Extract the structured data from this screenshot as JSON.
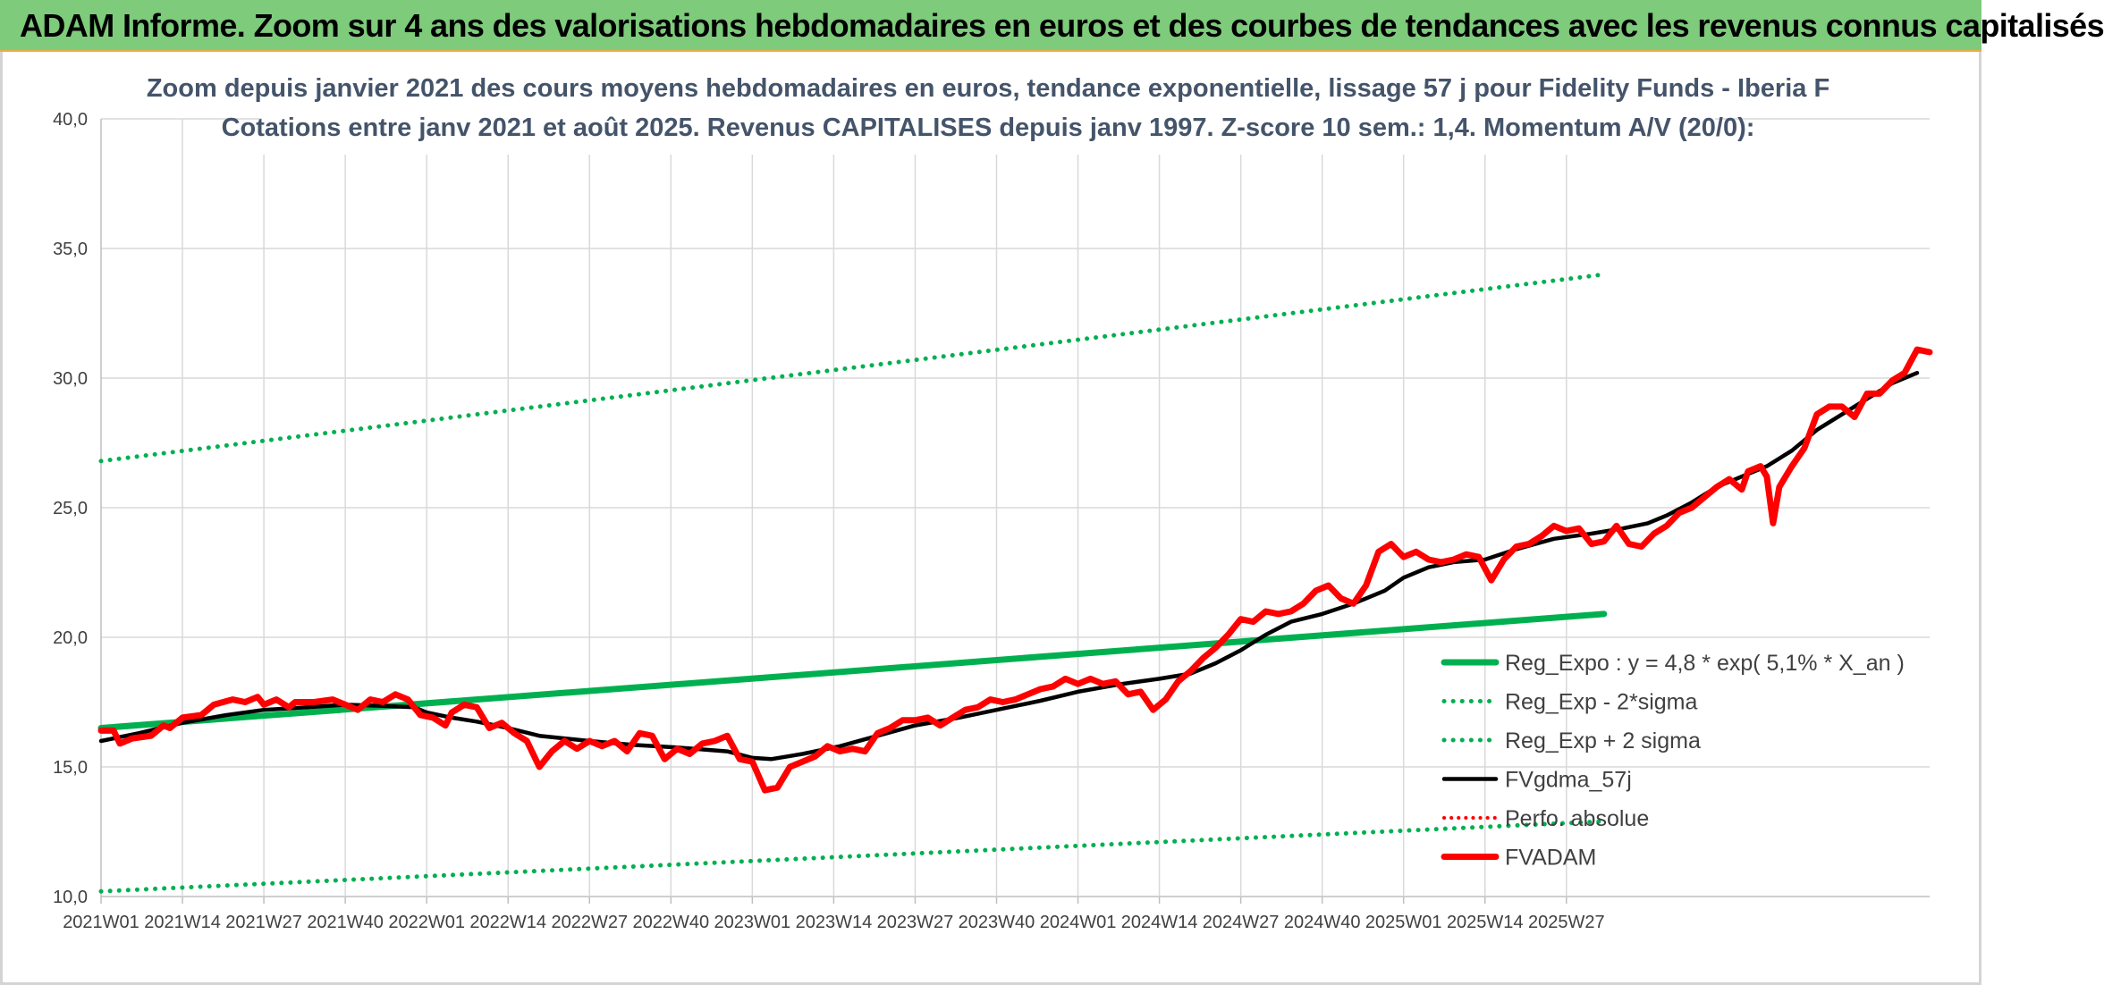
{
  "banner": {
    "title": "ADAM Informe. Zoom sur 4 ans des valorisations hebdomadaires en euros et des courbes de tendances avec les revenus connus capitalisés"
  },
  "chart_data": {
    "type": "line",
    "title": "Zoom depuis janvier 2021 des cours moyens hebdomadaires en euros, tendance exponentielle, lissage 57 j pour Fidelity Funds - Iberia F",
    "subtitle": "Cotations entre janv 2021 et août 2025. Revenus CAPITALISES depuis janv 1997. Z-score 10 sem.: 1,4. Momentum A/V (20/0):",
    "xlabel": "",
    "ylabel": "",
    "ylim": [
      10,
      40
    ],
    "yticks": [
      "10,0",
      "15,0",
      "20,0",
      "25,0",
      "30,0",
      "35,0",
      "40,0"
    ],
    "xticks": [
      "2021W01",
      "2021W14",
      "2021W27",
      "2021W40",
      "2022W01",
      "2022W14",
      "2022W27",
      "2022W40",
      "2023W01",
      "2023W14",
      "2023W27",
      "2023W40",
      "2024W01",
      "2024W14",
      "2024W27",
      "2024W40",
      "2025W01",
      "2025W14",
      "2025W27"
    ],
    "grid": true,
    "legend_position": "bottom-right",
    "colors": {
      "reg_expo": "#00b050",
      "reg_band": "#00b050",
      "fvgdma": "#000000",
      "perfo": "#ff0000",
      "fvadam": "#ff0000",
      "grid": "#d9d9d9",
      "axis": "#bfbfbf"
    },
    "series": [
      {
        "name": "Reg_Expo : y = 4,8 * exp( 5,1% *  X_an )",
        "style": "solid-thick",
        "points": [
          [
            0,
            16.5
          ],
          [
            240,
            20.9
          ]
        ]
      },
      {
        "name": "Reg_Exp - 2*sigma",
        "style": "dotted",
        "points": [
          [
            0,
            10.2
          ],
          [
            240,
            12.9
          ]
        ]
      },
      {
        "name": "Reg_Exp + 2 sigma",
        "style": "dotted",
        "points": [
          [
            0,
            26.8
          ],
          [
            240,
            34.0
          ]
        ]
      },
      {
        "name": "FVgdma_57j",
        "style": "solid",
        "points": [
          [
            0,
            16.0
          ],
          [
            6,
            16.3
          ],
          [
            13,
            16.7
          ],
          [
            20,
            17.0
          ],
          [
            26,
            17.2
          ],
          [
            33,
            17.3
          ],
          [
            39,
            17.4
          ],
          [
            45,
            17.35
          ],
          [
            50,
            17.3
          ],
          [
            52,
            17.1
          ],
          [
            56,
            16.9
          ],
          [
            60,
            16.75
          ],
          [
            65,
            16.5
          ],
          [
            70,
            16.2
          ],
          [
            78,
            16.0
          ],
          [
            85,
            15.85
          ],
          [
            92,
            15.75
          ],
          [
            100,
            15.6
          ],
          [
            104,
            15.35
          ],
          [
            107,
            15.3
          ],
          [
            112,
            15.5
          ],
          [
            118,
            15.8
          ],
          [
            124,
            16.2
          ],
          [
            130,
            16.6
          ],
          [
            137,
            16.9
          ],
          [
            143,
            17.2
          ],
          [
            150,
            17.55
          ],
          [
            156,
            17.9
          ],
          [
            163,
            18.2
          ],
          [
            169,
            18.4
          ],
          [
            174,
            18.6
          ],
          [
            178,
            19.0
          ],
          [
            182,
            19.5
          ],
          [
            186,
            20.1
          ],
          [
            190,
            20.6
          ],
          [
            195,
            20.9
          ],
          [
            200,
            21.3
          ],
          [
            205,
            21.8
          ],
          [
            208,
            22.3
          ],
          [
            212,
            22.7
          ],
          [
            216,
            22.9
          ],
          [
            221,
            23.0
          ],
          [
            226,
            23.4
          ],
          [
            232,
            23.8
          ],
          [
            238,
            24.0
          ],
          [
            243,
            24.2
          ],
          [
            247,
            24.4
          ],
          [
            250,
            24.7
          ],
          [
            254,
            25.2
          ],
          [
            258,
            25.8
          ],
          [
            262,
            26.2
          ],
          [
            266,
            26.6
          ],
          [
            270,
            27.2
          ],
          [
            274,
            28.0
          ],
          [
            278,
            28.6
          ],
          [
            282,
            29.2
          ],
          [
            286,
            29.8
          ],
          [
            290,
            30.2
          ]
        ]
      },
      {
        "name": "Perfo. absolue",
        "style": "dotted",
        "points": []
      },
      {
        "name": "FVADAM",
        "style": "solid-thick",
        "points": [
          [
            0,
            16.4
          ],
          [
            2,
            16.4
          ],
          [
            3,
            15.9
          ],
          [
            5,
            16.1
          ],
          [
            8,
            16.2
          ],
          [
            10,
            16.6
          ],
          [
            11,
            16.5
          ],
          [
            13,
            16.9
          ],
          [
            16,
            17.0
          ],
          [
            18,
            17.4
          ],
          [
            21,
            17.6
          ],
          [
            23,
            17.5
          ],
          [
            25,
            17.7
          ],
          [
            26,
            17.4
          ],
          [
            28,
            17.6
          ],
          [
            30,
            17.3
          ],
          [
            31,
            17.5
          ],
          [
            34,
            17.5
          ],
          [
            37,
            17.6
          ],
          [
            39,
            17.4
          ],
          [
            41,
            17.2
          ],
          [
            43,
            17.6
          ],
          [
            45,
            17.5
          ],
          [
            47,
            17.8
          ],
          [
            49,
            17.6
          ],
          [
            51,
            17.0
          ],
          [
            53,
            16.9
          ],
          [
            55,
            16.6
          ],
          [
            56,
            17.1
          ],
          [
            58,
            17.4
          ],
          [
            60,
            17.3
          ],
          [
            62,
            16.5
          ],
          [
            64,
            16.7
          ],
          [
            66,
            16.3
          ],
          [
            68,
            16.0
          ],
          [
            70,
            15.0
          ],
          [
            72,
            15.6
          ],
          [
            74,
            16.0
          ],
          [
            76,
            15.7
          ],
          [
            78,
            16.0
          ],
          [
            80,
            15.8
          ],
          [
            82,
            16.0
          ],
          [
            84,
            15.6
          ],
          [
            86,
            16.3
          ],
          [
            88,
            16.2
          ],
          [
            90,
            15.3
          ],
          [
            92,
            15.7
          ],
          [
            94,
            15.5
          ],
          [
            96,
            15.9
          ],
          [
            98,
            16.0
          ],
          [
            100,
            16.2
          ],
          [
            102,
            15.3
          ],
          [
            104,
            15.2
          ],
          [
            106,
            14.1
          ],
          [
            108,
            14.2
          ],
          [
            110,
            15.0
          ],
          [
            112,
            15.2
          ],
          [
            114,
            15.4
          ],
          [
            116,
            15.8
          ],
          [
            118,
            15.6
          ],
          [
            120,
            15.7
          ],
          [
            122,
            15.6
          ],
          [
            124,
            16.3
          ],
          [
            126,
            16.5
          ],
          [
            128,
            16.8
          ],
          [
            130,
            16.8
          ],
          [
            132,
            16.9
          ],
          [
            134,
            16.6
          ],
          [
            136,
            16.9
          ],
          [
            138,
            17.2
          ],
          [
            140,
            17.3
          ],
          [
            142,
            17.6
          ],
          [
            144,
            17.5
          ],
          [
            146,
            17.6
          ],
          [
            148,
            17.8
          ],
          [
            150,
            18.0
          ],
          [
            152,
            18.1
          ],
          [
            154,
            18.4
          ],
          [
            156,
            18.2
          ],
          [
            158,
            18.4
          ],
          [
            160,
            18.2
          ],
          [
            162,
            18.3
          ],
          [
            164,
            17.8
          ],
          [
            166,
            17.9
          ],
          [
            168,
            17.2
          ],
          [
            170,
            17.6
          ],
          [
            172,
            18.3
          ],
          [
            174,
            18.7
          ],
          [
            176,
            19.2
          ],
          [
            178,
            19.6
          ],
          [
            180,
            20.1
          ],
          [
            182,
            20.7
          ],
          [
            184,
            20.6
          ],
          [
            186,
            21.0
          ],
          [
            188,
            20.9
          ],
          [
            190,
            21.0
          ],
          [
            192,
            21.3
          ],
          [
            194,
            21.8
          ],
          [
            196,
            22.0
          ],
          [
            198,
            21.5
          ],
          [
            200,
            21.3
          ],
          [
            202,
            22.0
          ],
          [
            204,
            23.3
          ],
          [
            206,
            23.6
          ],
          [
            208,
            23.1
          ],
          [
            210,
            23.3
          ],
          [
            212,
            23.0
          ],
          [
            214,
            22.9
          ],
          [
            216,
            23.0
          ],
          [
            218,
            23.2
          ],
          [
            220,
            23.1
          ],
          [
            222,
            22.2
          ],
          [
            224,
            23.0
          ],
          [
            226,
            23.5
          ],
          [
            228,
            23.6
          ],
          [
            230,
            23.9
          ],
          [
            232,
            24.3
          ],
          [
            234,
            24.1
          ],
          [
            236,
            24.2
          ],
          [
            238,
            23.6
          ],
          [
            240,
            23.7
          ],
          [
            242,
            24.3
          ],
          [
            244,
            23.6
          ],
          [
            246,
            23.5
          ],
          [
            248,
            24.0
          ],
          [
            250,
            24.3
          ],
          [
            252,
            24.8
          ],
          [
            254,
            25.0
          ],
          [
            256,
            25.4
          ],
          [
            258,
            25.8
          ],
          [
            260,
            26.1
          ],
          [
            262,
            25.7
          ],
          [
            263,
            26.4
          ],
          [
            265,
            26.6
          ],
          [
            266,
            26.2
          ],
          [
            267,
            24.4
          ],
          [
            268,
            25.8
          ],
          [
            270,
            26.6
          ],
          [
            272,
            27.3
          ],
          [
            274,
            28.6
          ],
          [
            276,
            28.9
          ],
          [
            278,
            28.9
          ],
          [
            280,
            28.5
          ],
          [
            282,
            29.4
          ],
          [
            284,
            29.4
          ],
          [
            286,
            29.9
          ],
          [
            288,
            30.2
          ],
          [
            290,
            31.1
          ],
          [
            292,
            31.0
          ]
        ]
      }
    ]
  }
}
